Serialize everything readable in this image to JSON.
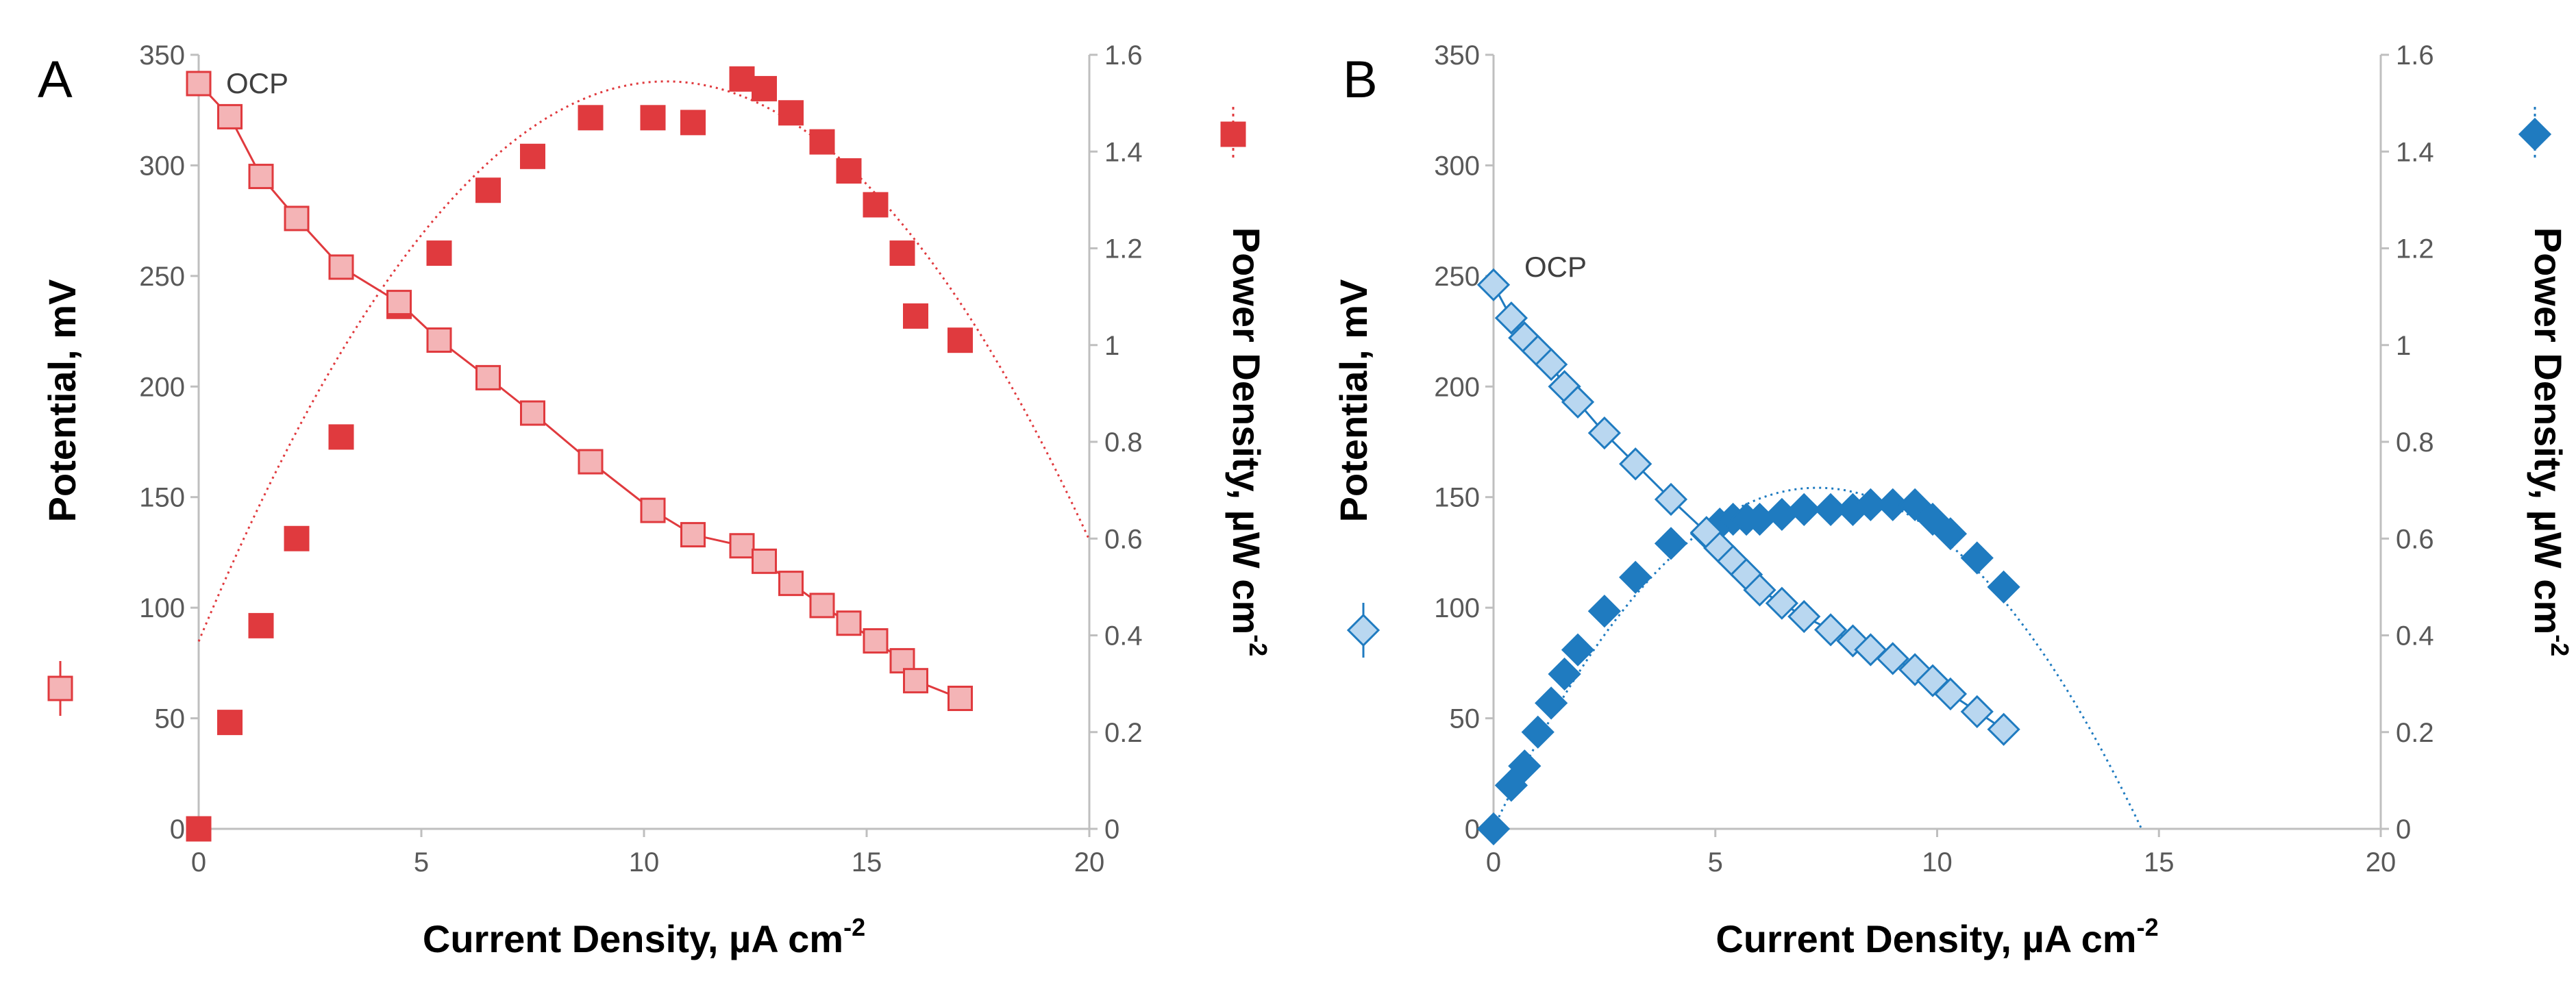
{
  "figure": {
    "panels": [
      "A",
      "B"
    ]
  },
  "chart_data": [
    {
      "panel_label": "A",
      "type": "scatter",
      "color": "#e03a3e",
      "light_color": "#f4b4b6",
      "annotation": "OCP",
      "xlabel": "Current Density, µA cm",
      "xlabel_sup": "-2",
      "ylabel_left": "Potential, mV",
      "ylabel_right": "Power Density, µW cm",
      "ylabel_right_sup": "-2",
      "xlim": [
        0,
        20
      ],
      "ylim_left": [
        0,
        350
      ],
      "ylim_right": [
        0,
        1.6
      ],
      "xticks": [
        "0",
        "5",
        "10",
        "15",
        "20"
      ],
      "yticks_left": [
        "0",
        "50",
        "100",
        "150",
        "200",
        "250",
        "300",
        "350"
      ],
      "yticks_right": [
        "0",
        "0.2",
        "0.4",
        "0.6",
        "0.8",
        "1",
        "1.2",
        "1.4",
        "1.6"
      ],
      "potential": {
        "x": [
          0,
          0.7,
          1.4,
          2.2,
          3.2,
          4.5,
          5.4,
          6.5,
          7.5,
          8.8,
          10.2,
          11.1,
          12.2,
          12.7,
          13.3,
          14.0,
          14.6,
          15.2,
          15.8,
          16.1,
          17.1
        ],
        "y": [
          337,
          322,
          295,
          276,
          254,
          238,
          221,
          204,
          188,
          166,
          144,
          133,
          128,
          121,
          111,
          101,
          93,
          85,
          76,
          67,
          59
        ]
      },
      "power": {
        "x": [
          0,
          0.7,
          1.4,
          2.2,
          3.2,
          4.5,
          5.4,
          6.5,
          7.5,
          8.8,
          10.2,
          11.1,
          12.2,
          12.7,
          13.3,
          14.0,
          14.6,
          15.2,
          15.8,
          16.1,
          17.1
        ],
        "y": [
          0,
          0.22,
          0.42,
          0.6,
          0.81,
          1.08,
          1.19,
          1.32,
          1.39,
          1.47,
          1.47,
          1.46,
          1.55,
          1.53,
          1.48,
          1.42,
          1.36,
          1.29,
          1.19,
          1.06,
          1.01
        ]
      },
      "power_fit": {
        "type": "quadratic",
        "vertex_x": 10.5,
        "vertex_y": 1.545,
        "coef": -0.0105,
        "x_range": [
          0,
          20
        ]
      }
    },
    {
      "panel_label": "B",
      "type": "scatter",
      "color": "#1f7bc0",
      "light_color": "#b9d7f0",
      "annotation": "OCP",
      "xlabel": "Current Density, µA cm",
      "xlabel_sup": "-2",
      "ylabel_left": "Potential, mV",
      "ylabel_right": "Power Density, µW cm",
      "ylabel_right_sup": "-2",
      "xlim": [
        0,
        20
      ],
      "ylim_left": [
        0,
        350
      ],
      "ylim_right": [
        0,
        1.6
      ],
      "xticks": [
        "0",
        "5",
        "10",
        "15",
        "20"
      ],
      "yticks_left": [
        "0",
        "50",
        "100",
        "150",
        "200",
        "250",
        "300",
        "350"
      ],
      "yticks_right": [
        "0",
        "0.2",
        "0.4",
        "0.6",
        "0.8",
        "1",
        "1.2",
        "1.4",
        "1.6"
      ],
      "potential": {
        "x": [
          0,
          0.4,
          0.7,
          1.0,
          1.3,
          1.6,
          1.9,
          2.5,
          3.2,
          4.0,
          4.8,
          5.1,
          5.4,
          5.7,
          6.0,
          6.5,
          7.0,
          7.6,
          8.1,
          8.5,
          9.0,
          9.5,
          9.9,
          10.3,
          10.9,
          11.5
        ],
        "y": [
          246,
          231,
          222,
          216,
          210,
          200,
          193,
          179,
          165,
          149,
          134,
          127,
          121,
          115,
          108,
          102,
          96,
          90,
          85,
          81,
          77,
          72,
          67,
          61,
          53,
          45
        ]
      },
      "power": {
        "x": [
          0,
          0.4,
          0.7,
          1.0,
          1.3,
          1.6,
          1.9,
          2.5,
          3.2,
          4.0,
          4.8,
          5.1,
          5.4,
          5.7,
          6.0,
          6.5,
          7.0,
          7.6,
          8.1,
          8.5,
          9.0,
          9.5,
          9.9,
          10.3,
          10.9,
          11.5
        ],
        "y": [
          0,
          0.09,
          0.13,
          0.2,
          0.26,
          0.32,
          0.37,
          0.45,
          0.52,
          0.59,
          0.61,
          0.63,
          0.64,
          0.64,
          0.64,
          0.65,
          0.66,
          0.66,
          0.66,
          0.67,
          0.67,
          0.67,
          0.64,
          0.61,
          0.56,
          0.5
        ]
      },
      "power_fit": {
        "type": "quadratic",
        "vertex_x": 7.3,
        "vertex_y": 0.705,
        "coef": -0.0132,
        "x_range": [
          0,
          14.6
        ]
      }
    }
  ]
}
